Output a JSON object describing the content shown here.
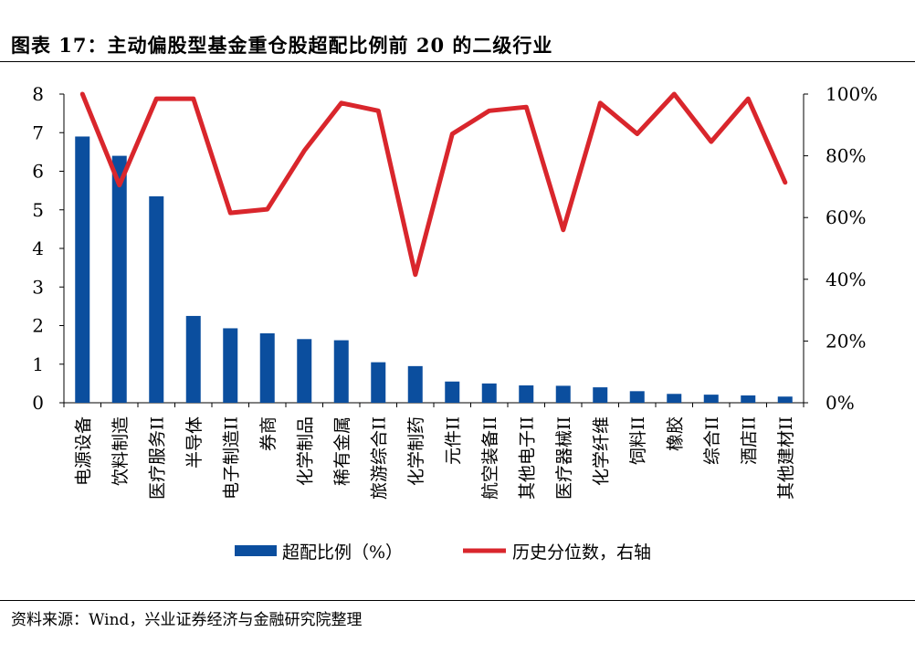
{
  "title": "图表 17：主动偏股型基金重仓股超配比例前 20 的二级行业",
  "source": "资料来源：Wind，兴业证券经济与金融研究院整理",
  "chart_data": {
    "type": "bar",
    "categories": [
      "电源设备",
      "饮料制造",
      "医疗服务II",
      "半导体",
      "电子制造II",
      "券商",
      "化学制品",
      "稀有金属",
      "旅游综合II",
      "化学制药",
      "元件II",
      "航空装备II",
      "其他电子II",
      "医疗器械II",
      "化学纤维",
      "饲料II",
      "橡胶",
      "综合II",
      "酒店II",
      "其他建材II"
    ],
    "series": [
      {
        "name": "超配比例（%）",
        "type": "bar",
        "axis": "left",
        "color": "#0b4e9e",
        "values": [
          6.9,
          6.4,
          5.35,
          2.25,
          1.93,
          1.8,
          1.65,
          1.62,
          1.05,
          0.95,
          0.55,
          0.5,
          0.45,
          0.44,
          0.4,
          0.3,
          0.23,
          0.21,
          0.19,
          0.16
        ]
      },
      {
        "name": "历史分位数，右轴",
        "type": "line",
        "axis": "right",
        "color": "#d9262c",
        "values": [
          100,
          70.5,
          98.5,
          98.5,
          61.5,
          62.7,
          81.7,
          97.1,
          94.6,
          41.5,
          87.1,
          94.6,
          95.8,
          56,
          97.1,
          87.1,
          100,
          84.6,
          98.5,
          71.4
        ]
      }
    ],
    "yleft": {
      "min": 0,
      "max": 8,
      "ticks": [
        "0",
        "1",
        "2",
        "3",
        "4",
        "5",
        "6",
        "7",
        "8"
      ]
    },
    "yright": {
      "min": 0,
      "max": 100,
      "ticks": [
        "0%",
        "20%",
        "40%",
        "60%",
        "80%",
        "100%"
      ]
    },
    "grid": false,
    "legend_position": "bottom"
  }
}
